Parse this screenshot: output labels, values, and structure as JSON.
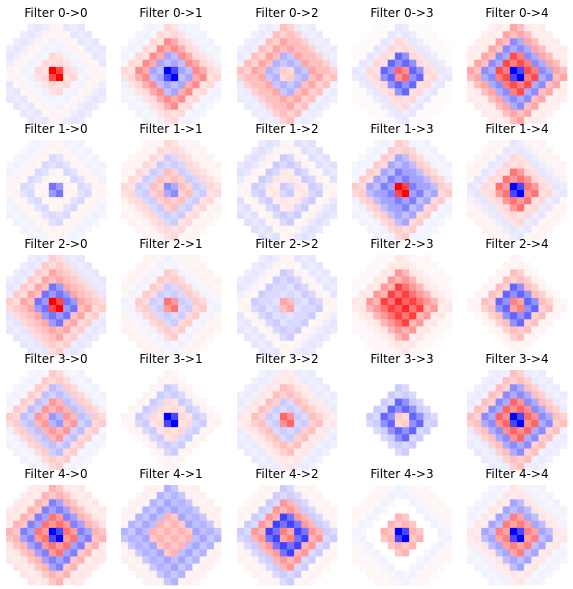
{
  "chart_data": {
    "type": "heatmap",
    "colormap": "bwr",
    "rows": 5,
    "cols": 5,
    "panels": [
      {
        "title": "Filter 0->0",
        "in": 0,
        "out": 0,
        "center": 1.0,
        "ring1": 0.15,
        "ring2": -0.05,
        "ring3": 0.05,
        "ring4": -0.1
      },
      {
        "title": "Filter 0->1",
        "in": 0,
        "out": 1,
        "center": -1.0,
        "ring1": -0.35,
        "ring2": 0.45,
        "ring3": 0.15,
        "ring4": -0.05
      },
      {
        "title": "Filter 0->2",
        "in": 0,
        "out": 2,
        "center": 0.2,
        "ring1": -0.3,
        "ring2": 0.35,
        "ring3": 0.25,
        "ring4": -0.08
      },
      {
        "title": "Filter 0->3",
        "in": 0,
        "out": 3,
        "center": 0.6,
        "ring1": -0.6,
        "ring2": 0.15,
        "ring3": -0.1,
        "ring4": 0.02
      },
      {
        "title": "Filter 0->4",
        "in": 0,
        "out": 4,
        "center": -1.0,
        "ring1": 0.7,
        "ring2": -0.45,
        "ring3": 0.35,
        "ring4": 0.08
      },
      {
        "title": "Filter 1->0",
        "in": 1,
        "out": 0,
        "center": -0.55,
        "ring1": 0.05,
        "ring2": -0.15,
        "ring3": 0.05,
        "ring4": -0.05
      },
      {
        "title": "Filter 1->1",
        "in": 1,
        "out": 1,
        "center": -0.45,
        "ring1": 0.25,
        "ring2": -0.2,
        "ring3": 0.15,
        "ring4": 0.05
      },
      {
        "title": "Filter 1->2",
        "in": 1,
        "out": 2,
        "center": -0.2,
        "ring1": 0.1,
        "ring2": -0.2,
        "ring3": 0.05,
        "ring4": -0.12
      },
      {
        "title": "Filter 1->3",
        "in": 1,
        "out": 3,
        "center": 1.0,
        "ring1": -0.5,
        "ring2": -0.35,
        "ring3": 0.2,
        "ring4": -0.05
      },
      {
        "title": "Filter 1->4",
        "in": 1,
        "out": 4,
        "center": -1.0,
        "ring1": 0.55,
        "ring2": 0.15,
        "ring3": -0.1,
        "ring4": 0.05
      },
      {
        "title": "Filter 2->0",
        "in": 2,
        "out": 0,
        "center": 1.0,
        "ring1": -0.55,
        "ring2": 0.35,
        "ring3": 0.2,
        "ring4": -0.1
      },
      {
        "title": "Filter 2->1",
        "in": 2,
        "out": 1,
        "center": 0.55,
        "ring1": -0.2,
        "ring2": 0.2,
        "ring3": -0.05,
        "ring4": 0.05
      },
      {
        "title": "Filter 2->2",
        "in": 2,
        "out": 2,
        "center": 0.35,
        "ring1": -0.15,
        "ring2": -0.2,
        "ring3": 0.05,
        "ring4": -0.1
      },
      {
        "title": "Filter 2->3",
        "in": 2,
        "out": 3,
        "center": 0.85,
        "ring1": 0.75,
        "ring2": 0.4,
        "ring3": 0.1,
        "ring4": 0.03
      },
      {
        "title": "Filter 2->4",
        "in": 2,
        "out": 4,
        "center": 0.5,
        "ring1": -0.6,
        "ring2": 0.25,
        "ring3": 0.05,
        "ring4": 0.0
      },
      {
        "title": "Filter 3->0",
        "in": 3,
        "out": 0,
        "center": -0.4,
        "ring1": 0.4,
        "ring2": -0.25,
        "ring3": 0.2,
        "ring4": -0.05
      },
      {
        "title": "Filter 3->1",
        "in": 3,
        "out": 1,
        "center": -1.0,
        "ring1": 0.15,
        "ring2": -0.2,
        "ring3": 0.05,
        "ring4": 0.0
      },
      {
        "title": "Filter 3->2",
        "in": 3,
        "out": 2,
        "center": 0.6,
        "ring1": -0.2,
        "ring2": 0.25,
        "ring3": 0.1,
        "ring4": -0.08
      },
      {
        "title": "Filter 3->3",
        "in": 3,
        "out": 3,
        "center": 0.2,
        "ring1": -0.6,
        "ring2": -0.2,
        "ring3": 0.0,
        "ring4": 0.0
      },
      {
        "title": "Filter 3->4",
        "in": 3,
        "out": 4,
        "center": -1.0,
        "ring1": 0.6,
        "ring2": -0.45,
        "ring3": 0.25,
        "ring4": -0.08
      },
      {
        "title": "Filter 4->0",
        "in": 4,
        "out": 0,
        "center": -1.0,
        "ring1": 0.55,
        "ring2": -0.5,
        "ring3": 0.3,
        "ring4": 0.1
      },
      {
        "title": "Filter 4->1",
        "in": 4,
        "out": 1,
        "center": 0.3,
        "ring1": 0.3,
        "ring2": -0.35,
        "ring3": -0.3,
        "ring4": 0.06
      },
      {
        "title": "Filter 4->2",
        "in": 4,
        "out": 2,
        "center": 0.5,
        "ring1": -0.75,
        "ring2": 0.4,
        "ring3": -0.2,
        "ring4": 0.05
      },
      {
        "title": "Filter 4->3",
        "in": 4,
        "out": 3,
        "center": -1.0,
        "ring1": 0.3,
        "ring2": 0.0,
        "ring3": -0.05,
        "ring4": 0.04
      },
      {
        "title": "Filter 4->4",
        "in": 4,
        "out": 4,
        "center": -1.0,
        "ring1": 0.5,
        "ring2": -0.35,
        "ring3": 0.1,
        "ring4": -0.05
      }
    ]
  }
}
